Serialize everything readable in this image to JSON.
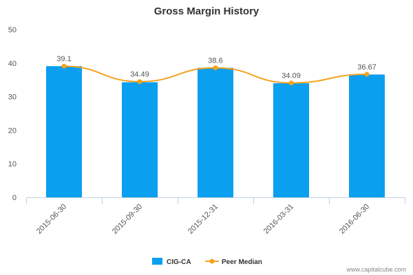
{
  "chart_data": {
    "type": "bar",
    "title": "Gross Margin History",
    "xlabel": "",
    "ylabel": "",
    "categories": [
      "2015-06-30",
      "2015-09-30",
      "2015-12-31",
      "2016-03-31",
      "2016-06-30"
    ],
    "ylim": [
      0,
      50
    ],
    "yticks": [
      "0",
      "10",
      "20",
      "30",
      "40",
      "50"
    ],
    "grid": false,
    "legend_position": "bottom-center",
    "series": [
      {
        "name": "CIG-CA",
        "type": "bar",
        "color": "#0b9fef",
        "values": [
          39.1,
          34.3,
          38.6,
          34.0,
          36.6
        ]
      },
      {
        "name": "Peer Median",
        "type": "line",
        "color": "#f4a21f",
        "values": [
          39.1,
          34.49,
          38.6,
          34.09,
          36.67
        ],
        "labels": [
          "39.1",
          "34.49",
          "38.6",
          "34.09",
          "36.67"
        ]
      }
    ]
  },
  "watermark": "www.capitalcube.com"
}
